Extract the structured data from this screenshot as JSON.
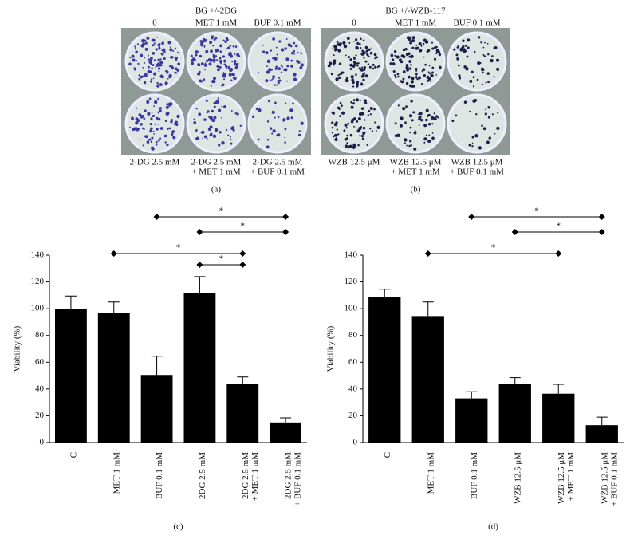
{
  "photos": [
    {
      "title": "BG +/-2DG",
      "label": "(a)",
      "wells": [
        [
          "0"
        ],
        [
          "MET 1 mM"
        ],
        [
          "BUF 0.1 mM"
        ],
        [
          "2-DG 2.5 mM"
        ],
        [
          "2-DG 2.5 mM",
          "+ MET 1 mM"
        ],
        [
          "2-DG 2.5 mM",
          "+ BUF 0.1 mM"
        ]
      ]
    },
    {
      "title": "BG +/-WZB-117",
      "label": "(b)",
      "wells": [
        [
          "0"
        ],
        [
          "MET 1 mM"
        ],
        [
          "BUF 0.1 mM"
        ],
        [
          "WZB 12.5 μM"
        ],
        [
          "WZB 12.5 μM",
          "+ MET 1 mM"
        ],
        [
          "WZB 12.5 μM",
          "+ BUF 0.1 mM"
        ]
      ]
    }
  ],
  "chart_data": [
    {
      "type": "bar",
      "panel_label": "(c)",
      "ylabel": "Viability (%)",
      "color": "#000000",
      "categories": [
        [
          "C"
        ],
        [
          "MET 1 mM"
        ],
        [
          "BUF 0.1 mM"
        ],
        [
          "2DG 2.5 mM"
        ],
        [
          "2DG 2.5 mM",
          "+ MET 1 mM"
        ],
        [
          "2DG 2.5 mM",
          "+ BUF 0.1 mM"
        ]
      ],
      "values": [
        100,
        97,
        50.5,
        111.5,
        44,
        15
      ],
      "errors": [
        9.5,
        8,
        14,
        12.5,
        5,
        3.5
      ],
      "ylim": [
        0,
        140
      ],
      "yticks": [
        0,
        20,
        40,
        60,
        80,
        100,
        120,
        140
      ],
      "significance": [
        {
          "from": 2,
          "to": 5,
          "label": "*"
        },
        {
          "from": 3,
          "to": 5,
          "label": "*"
        },
        {
          "from": 1,
          "to": 4,
          "label": "*"
        },
        {
          "from": 3,
          "to": 4,
          "label": "*"
        }
      ]
    },
    {
      "type": "bar",
      "panel_label": "(d)",
      "ylabel": "Viability (%)",
      "color": "#000000",
      "categories": [
        [
          "C"
        ],
        [
          "MET 1 mM"
        ],
        [
          "BUF 0.1 mM"
        ],
        [
          "WZB 12.5 μM"
        ],
        [
          "WZB 12.5 μM",
          "+ MET 1 mM"
        ],
        [
          "WZB 12.5 μM",
          "+ BUF 0.1 mM"
        ]
      ],
      "values": [
        109,
        94.5,
        33,
        44,
        36.5,
        13
      ],
      "errors": [
        5.5,
        10.5,
        5,
        4.5,
        7,
        6
      ],
      "ylim": [
        0,
        140
      ],
      "yticks": [
        0,
        20,
        40,
        60,
        80,
        100,
        120,
        140
      ],
      "significance": [
        {
          "from": 2,
          "to": 5,
          "label": "*"
        },
        {
          "from": 3,
          "to": 5,
          "label": "*"
        },
        {
          "from": 1,
          "to": 4,
          "label": "*"
        }
      ]
    }
  ]
}
